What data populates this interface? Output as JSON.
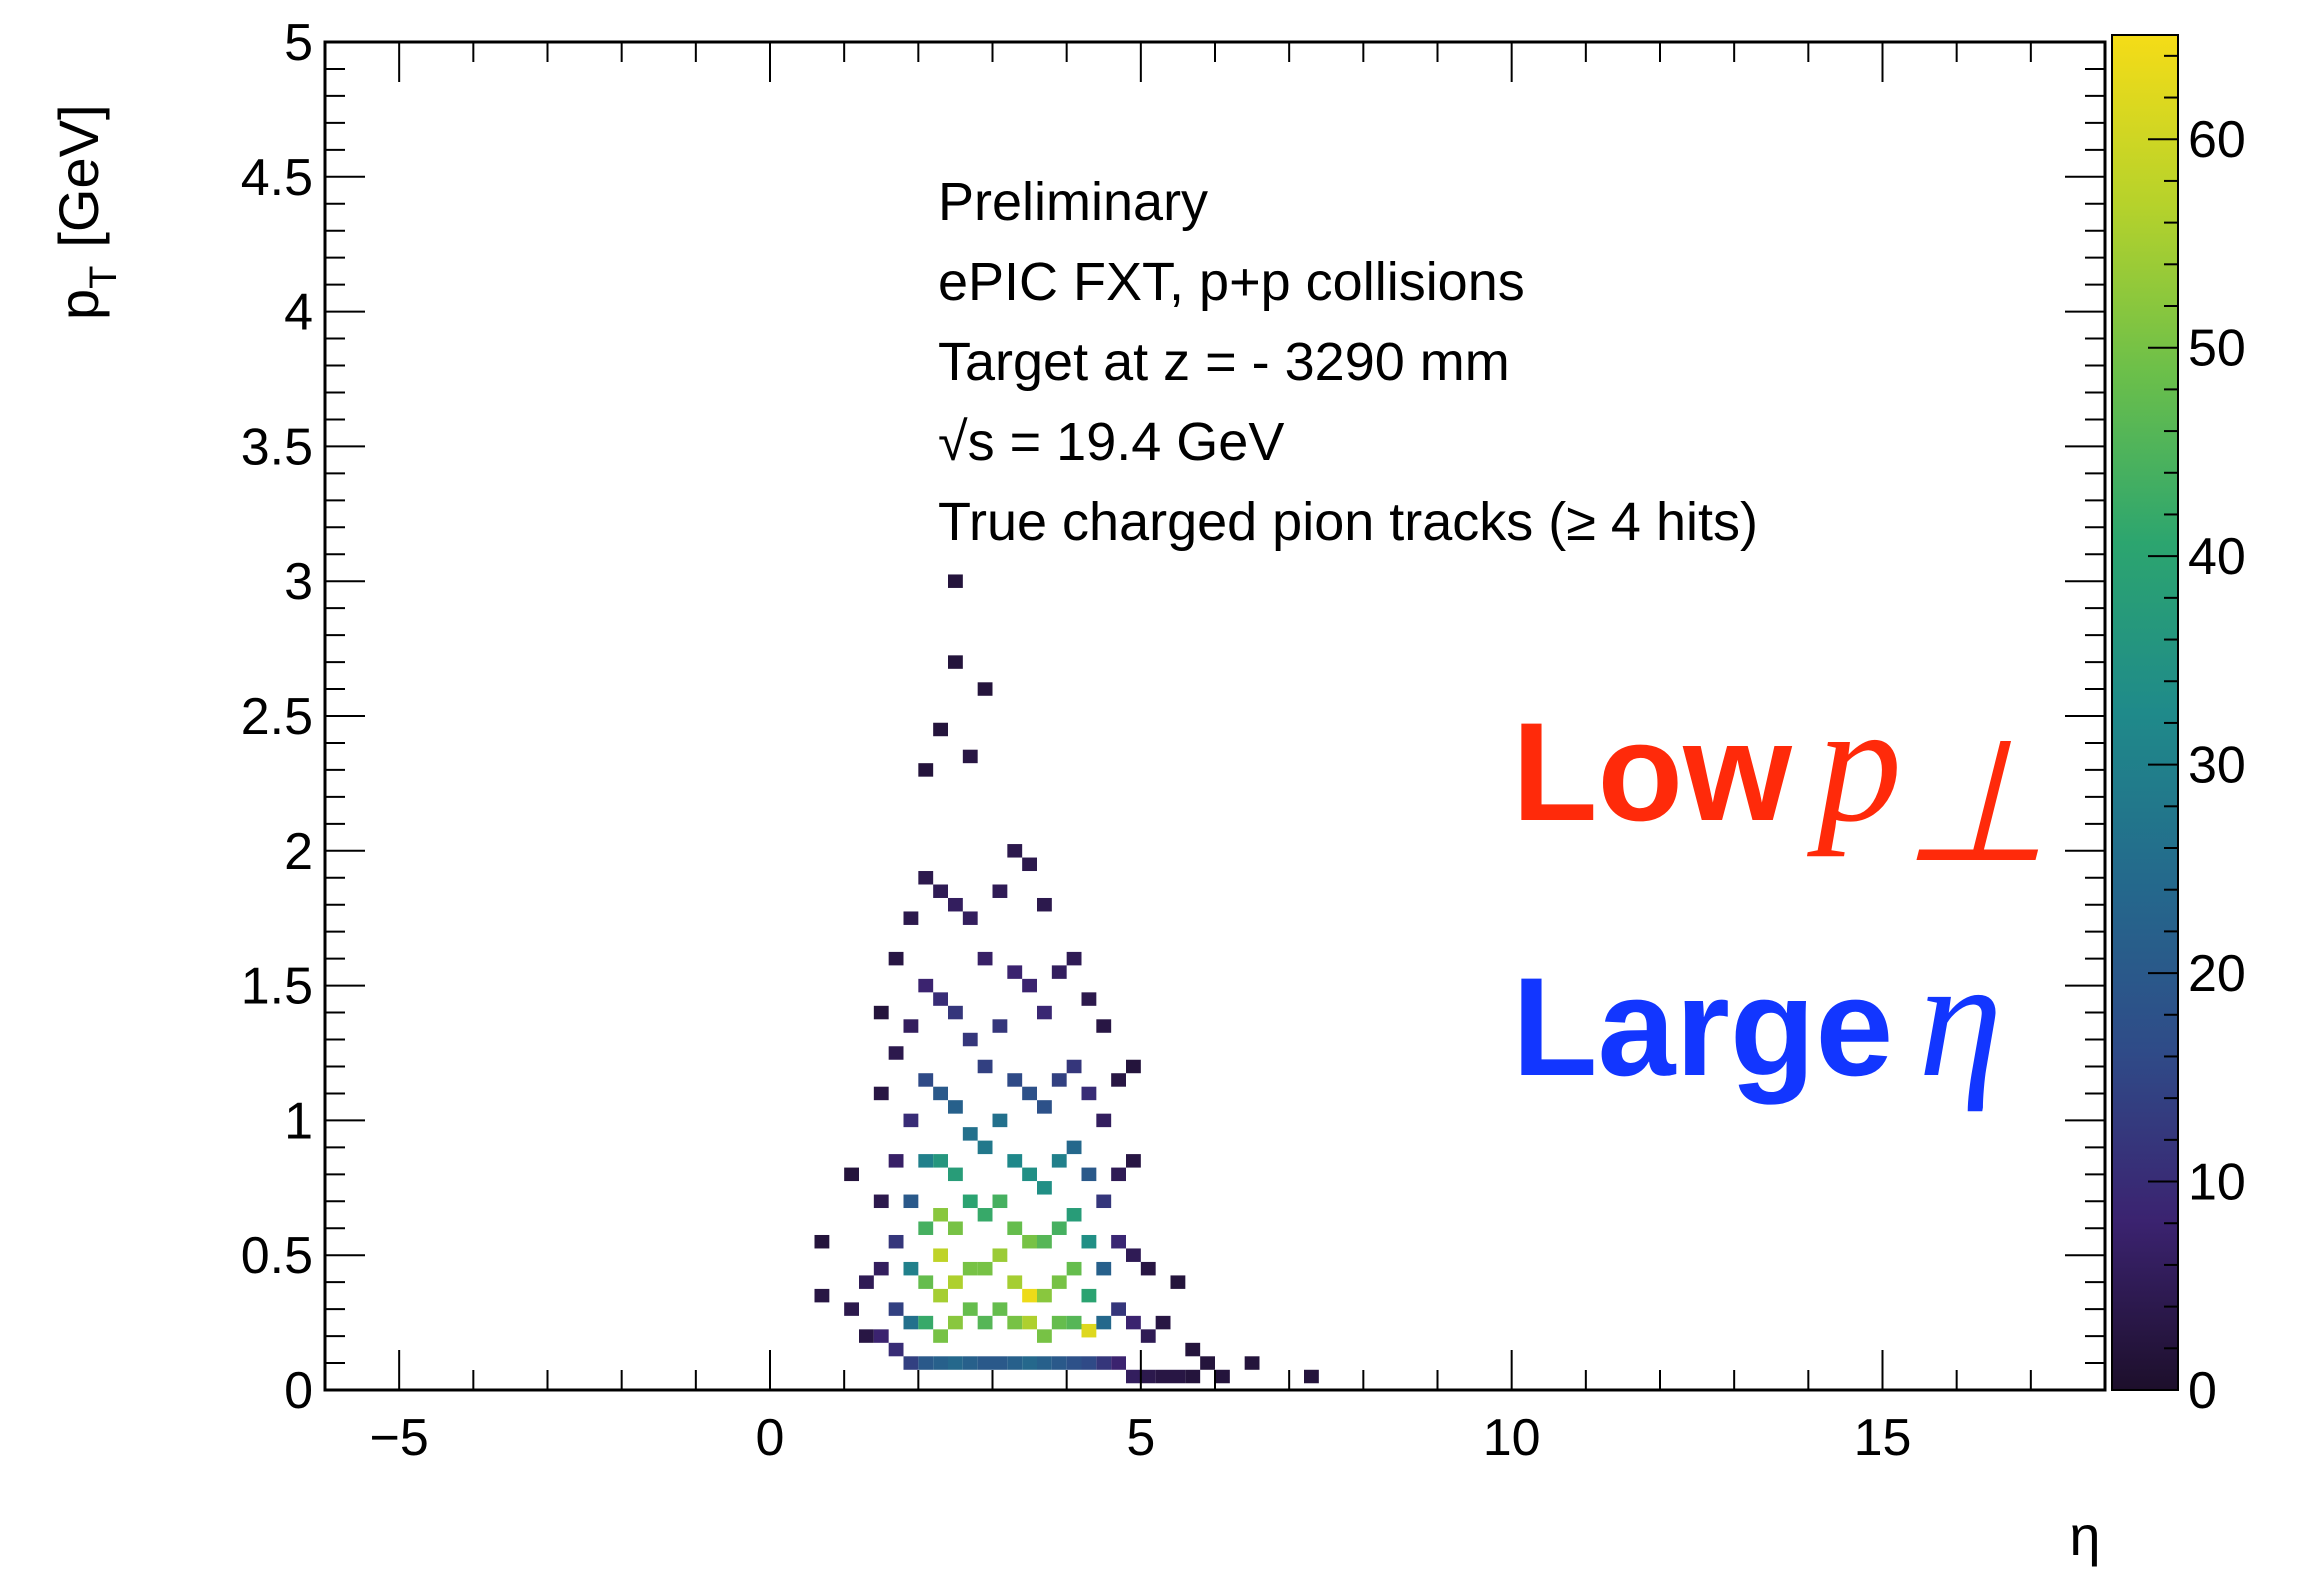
{
  "chart_data": {
    "type": "heatmap",
    "xlabel": "η",
    "ylabel_main": "p",
    "ylabel_sub": "T",
    "ylabel_unit": "[GeV]",
    "xlim": [
      -6,
      18
    ],
    "ylim": [
      0,
      5
    ],
    "x_ticks": [
      -5,
      0,
      5,
      10,
      15
    ],
    "x_tick_labels": [
      "−5",
      "0",
      "5",
      "10",
      "15"
    ],
    "y_ticks": [
      0,
      0.5,
      1,
      1.5,
      2,
      2.5,
      3,
      3.5,
      4,
      4.5,
      5
    ],
    "y_tick_labels": [
      "0",
      "0.5",
      "1",
      "1.5",
      "2",
      "2.5",
      "3",
      "3.5",
      "4",
      "4.5",
      "5"
    ],
    "colorbar": {
      "zlim": [
        0,
        65
      ],
      "ticks": [
        0,
        10,
        20,
        30,
        40,
        50,
        60
      ],
      "tick_labels": [
        "0",
        "10",
        "20",
        "30",
        "40",
        "50",
        "60"
      ],
      "colormap": [
        "#1d0f2b",
        "#3b2370",
        "#2f4b88",
        "#24698c",
        "#1f8a8a",
        "#2ca56f",
        "#6bbf4a",
        "#b6d22b",
        "#f5dc17"
      ]
    },
    "bins": {
      "eta_width": 0.2,
      "pt_width": 0.05,
      "cells": [
        [
          0.7,
          0.55,
          2
        ],
        [
          0.7,
          0.35,
          3
        ],
        [
          1.1,
          0.8,
          2
        ],
        [
          1.1,
          0.3,
          4
        ],
        [
          1.3,
          0.2,
          3
        ],
        [
          1.3,
          0.4,
          5
        ],
        [
          1.5,
          0.2,
          8
        ],
        [
          1.5,
          0.45,
          6
        ],
        [
          1.5,
          0.7,
          4
        ],
        [
          1.5,
          1.1,
          3
        ],
        [
          1.5,
          1.4,
          2
        ],
        [
          1.7,
          0.15,
          10
        ],
        [
          1.7,
          0.3,
          14
        ],
        [
          1.7,
          0.55,
          12
        ],
        [
          1.7,
          0.85,
          7
        ],
        [
          1.7,
          1.25,
          4
        ],
        [
          1.7,
          1.6,
          3
        ],
        [
          1.9,
          0.1,
          14
        ],
        [
          1.9,
          0.25,
          26
        ],
        [
          1.9,
          0.45,
          30
        ],
        [
          1.9,
          0.7,
          20
        ],
        [
          1.9,
          1.0,
          10
        ],
        [
          1.9,
          1.35,
          6
        ],
        [
          1.9,
          1.75,
          4
        ],
        [
          2.1,
          0.1,
          20
        ],
        [
          2.1,
          0.25,
          42
        ],
        [
          2.1,
          0.4,
          48
        ],
        [
          2.1,
          0.6,
          44
        ],
        [
          2.1,
          0.85,
          30
        ],
        [
          2.1,
          1.15,
          16
        ],
        [
          2.1,
          1.5,
          8
        ],
        [
          2.1,
          1.9,
          4
        ],
        [
          2.1,
          2.3,
          2
        ],
        [
          2.3,
          0.1,
          22
        ],
        [
          2.3,
          0.2,
          50
        ],
        [
          2.3,
          0.35,
          55
        ],
        [
          2.3,
          0.5,
          58
        ],
        [
          2.3,
          0.65,
          52
        ],
        [
          2.3,
          0.85,
          36
        ],
        [
          2.3,
          1.1,
          20
        ],
        [
          2.3,
          1.45,
          10
        ],
        [
          2.3,
          1.85,
          5
        ],
        [
          2.3,
          2.45,
          2
        ],
        [
          2.5,
          0.1,
          24
        ],
        [
          2.5,
          0.25,
          52
        ],
        [
          2.5,
          0.4,
          56
        ],
        [
          2.5,
          0.6,
          50
        ],
        [
          2.5,
          0.8,
          38
        ],
        [
          2.5,
          1.05,
          22
        ],
        [
          2.5,
          1.4,
          12
        ],
        [
          2.5,
          1.8,
          6
        ],
        [
          2.5,
          2.7,
          2
        ],
        [
          2.5,
          3.0,
          2
        ],
        [
          2.7,
          0.1,
          22
        ],
        [
          2.7,
          0.3,
          48
        ],
        [
          2.7,
          0.45,
          50
        ],
        [
          2.7,
          0.7,
          40
        ],
        [
          2.7,
          0.95,
          26
        ],
        [
          2.7,
          1.3,
          12
        ],
        [
          2.7,
          1.75,
          6
        ],
        [
          2.7,
          2.35,
          3
        ],
        [
          2.9,
          0.1,
          20
        ],
        [
          2.9,
          0.25,
          46
        ],
        [
          2.9,
          0.45,
          50
        ],
        [
          2.9,
          0.65,
          42
        ],
        [
          2.9,
          0.9,
          28
        ],
        [
          2.9,
          1.2,
          14
        ],
        [
          2.9,
          1.6,
          7
        ],
        [
          2.9,
          2.6,
          2
        ],
        [
          3.1,
          0.1,
          20
        ],
        [
          3.1,
          0.3,
          48
        ],
        [
          3.1,
          0.5,
          54
        ],
        [
          3.1,
          0.7,
          44
        ],
        [
          3.1,
          1.0,
          26
        ],
        [
          3.1,
          1.35,
          12
        ],
        [
          3.1,
          1.85,
          5
        ],
        [
          3.3,
          0.1,
          22
        ],
        [
          3.3,
          0.25,
          50
        ],
        [
          3.3,
          0.4,
          55
        ],
        [
          3.3,
          0.6,
          48
        ],
        [
          3.3,
          0.85,
          32
        ],
        [
          3.3,
          1.15,
          16
        ],
        [
          3.3,
          1.55,
          8
        ],
        [
          3.3,
          2.0,
          4
        ],
        [
          3.5,
          0.1,
          24
        ],
        [
          3.5,
          0.25,
          56
        ],
        [
          3.5,
          0.35,
          64
        ],
        [
          3.5,
          0.55,
          50
        ],
        [
          3.5,
          0.8,
          34
        ],
        [
          3.5,
          1.1,
          18
        ],
        [
          3.5,
          1.5,
          8
        ],
        [
          3.5,
          1.95,
          4
        ],
        [
          3.7,
          0.1,
          22
        ],
        [
          3.7,
          0.2,
          50
        ],
        [
          3.7,
          0.35,
          52
        ],
        [
          3.7,
          0.55,
          46
        ],
        [
          3.7,
          0.75,
          34
        ],
        [
          3.7,
          1.05,
          18
        ],
        [
          3.7,
          1.4,
          9
        ],
        [
          3.7,
          1.8,
          4
        ],
        [
          3.9,
          0.1,
          20
        ],
        [
          3.9,
          0.25,
          48
        ],
        [
          3.9,
          0.4,
          50
        ],
        [
          3.9,
          0.6,
          44
        ],
        [
          3.9,
          0.85,
          30
        ],
        [
          3.9,
          1.15,
          14
        ],
        [
          3.9,
          1.55,
          6
        ],
        [
          4.1,
          0.1,
          18
        ],
        [
          4.1,
          0.25,
          46
        ],
        [
          4.1,
          0.45,
          48
        ],
        [
          4.1,
          0.65,
          38
        ],
        [
          4.1,
          0.9,
          24
        ],
        [
          4.1,
          1.2,
          12
        ],
        [
          4.1,
          1.6,
          5
        ],
        [
          4.3,
          0.1,
          16
        ],
        [
          4.3,
          0.22,
          62
        ],
        [
          4.3,
          0.35,
          40
        ],
        [
          4.3,
          0.55,
          34
        ],
        [
          4.3,
          0.8,
          20
        ],
        [
          4.3,
          1.1,
          10
        ],
        [
          4.3,
          1.45,
          4
        ],
        [
          4.5,
          0.1,
          12
        ],
        [
          4.5,
          0.25,
          24
        ],
        [
          4.5,
          0.45,
          22
        ],
        [
          4.5,
          0.7,
          12
        ],
        [
          4.5,
          1.0,
          6
        ],
        [
          4.5,
          1.35,
          3
        ],
        [
          4.7,
          0.1,
          8
        ],
        [
          4.7,
          0.3,
          12
        ],
        [
          4.7,
          0.55,
          9
        ],
        [
          4.7,
          0.8,
          5
        ],
        [
          4.7,
          1.15,
          3
        ],
        [
          4.9,
          0.05,
          6
        ],
        [
          4.9,
          0.25,
          8
        ],
        [
          4.9,
          0.5,
          5
        ],
        [
          4.9,
          0.85,
          3
        ],
        [
          4.9,
          1.2,
          2
        ],
        [
          5.1,
          0.05,
          4
        ],
        [
          5.1,
          0.2,
          5
        ],
        [
          5.1,
          0.45,
          3
        ],
        [
          5.3,
          0.05,
          3
        ],
        [
          5.3,
          0.25,
          3
        ],
        [
          5.5,
          0.05,
          3
        ],
        [
          5.5,
          0.4,
          2
        ],
        [
          5.7,
          0.05,
          2
        ],
        [
          5.7,
          0.15,
          2
        ],
        [
          5.9,
          0.1,
          2
        ],
        [
          6.1,
          0.05,
          2
        ],
        [
          6.5,
          0.1,
          2
        ],
        [
          7.3,
          0.05,
          2
        ]
      ]
    }
  },
  "annotations": {
    "lines": [
      "Preliminary",
      "ePIC FXT, p+p collisions",
      "Target at z = - 3290 mm",
      "s = 19.4 GeV",
      "True charged pion tracks (≥ 4 hits)"
    ],
    "sqrt_symbol": "√",
    "low_word": "Low",
    "low_symbol": "p",
    "low_subscript": "⊥",
    "large_word": "Large",
    "large_symbol": "η",
    "low_color": "#ff2a0a",
    "large_color": "#1236ff"
  }
}
